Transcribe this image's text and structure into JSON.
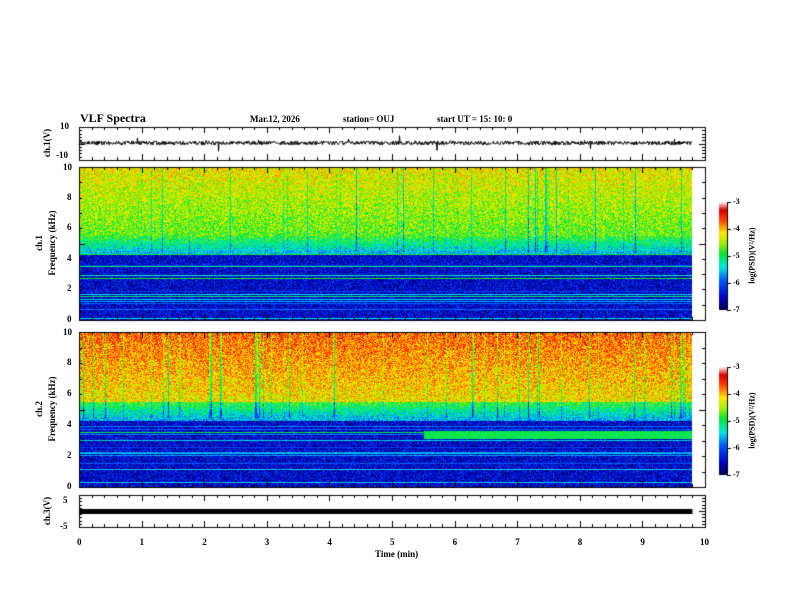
{
  "header": {
    "title": "VLF Spectra",
    "date": "Mar.12, 2026",
    "station": "station= OUJ",
    "start": "start  UT  =   15: 10: 0"
  },
  "colors": {
    "trace": "#000000",
    "axis": "#000000"
  },
  "chart_data": [
    {
      "type": "line",
      "name": "ch1",
      "ylabel": "ch.1(V)",
      "ylim": [
        -10,
        10
      ],
      "yticks": [
        "10",
        "-10"
      ],
      "xlim": [
        0,
        10
      ],
      "data_end_min": 9.8,
      "baseline": 0
    },
    {
      "type": "heatmap",
      "name": "ch2-spectrogram",
      "ylabel_top": "ch.1",
      "ylabel": "Frequency  (kHz)",
      "ylim": [
        0,
        10
      ],
      "yticks": [
        "0",
        "2",
        "4",
        "6",
        "8",
        "10"
      ],
      "xlim": [
        0,
        10
      ],
      "colorbar": {
        "label": "log(PSD)(V²/Hz)",
        "ticks": [
          "-3",
          "-4",
          "-5",
          "-6",
          "-7"
        ],
        "range": [
          -7,
          -3
        ]
      }
    },
    {
      "type": "heatmap",
      "name": "ch2-spectrogram",
      "ylabel_top": "ch.2",
      "ylabel": "Frequency  (kHz)",
      "ylim": [
        0,
        10
      ],
      "yticks": [
        "0",
        "2",
        "4",
        "6",
        "8",
        "10"
      ],
      "xlim": [
        0,
        10
      ],
      "colorbar": {
        "label": "log(PSD)(V²/Hz)",
        "ticks": [
          "-3",
          "-4",
          "-5",
          "-6",
          "-7"
        ],
        "range": [
          -7,
          -3
        ]
      },
      "feature": {
        "band_kHz": 3.4,
        "start_min": 5.5
      }
    },
    {
      "type": "line",
      "name": "ch3",
      "ylabel": "ch.3(V)",
      "ylim": [
        -5,
        5
      ],
      "yticks": [
        "5",
        "-5"
      ],
      "xlim": [
        0,
        10
      ],
      "constant_value": -1.5
    }
  ],
  "xaxis": {
    "label": "Time  (min)",
    "ticks": [
      "0",
      "1",
      "2",
      "3",
      "4",
      "5",
      "6",
      "7",
      "8",
      "9",
      "10"
    ]
  }
}
